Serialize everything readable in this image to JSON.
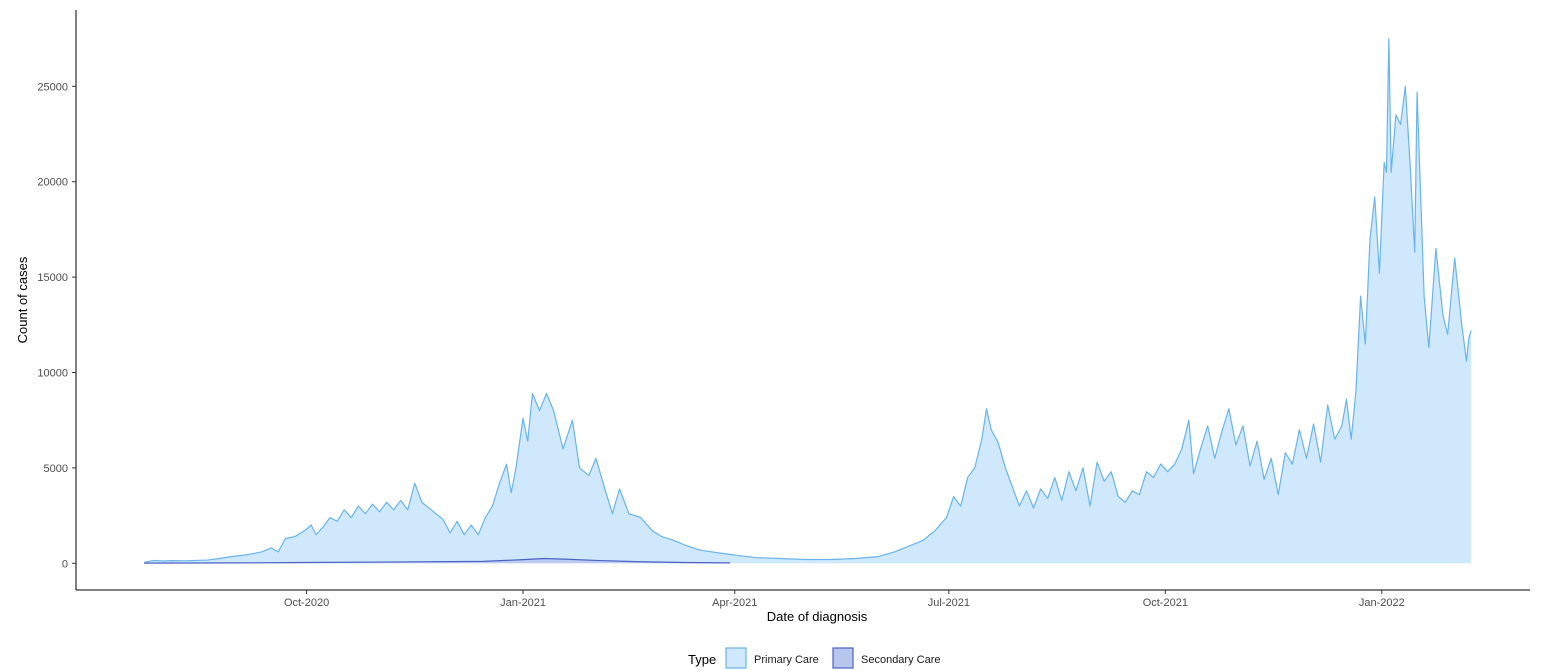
{
  "chart_data": {
    "type": "area",
    "xlabel": "Date of diagnosis",
    "ylabel": "Count of cases",
    "x_ticks": [
      "2020-10-01",
      "2021-01-01",
      "2021-04-01",
      "2021-07-01",
      "2021-10-01",
      "2022-01-01"
    ],
    "x_tick_labels": [
      "Oct-2020",
      "Jan-2021",
      "Apr-2021",
      "Jul-2021",
      "Oct-2021",
      "Jan-2022"
    ],
    "xlim": [
      "2020-06-25",
      "2022-03-05"
    ],
    "y_ticks": [
      0,
      5000,
      10000,
      15000,
      20000,
      25000
    ],
    "y_tick_labels": [
      "0",
      "5000",
      "10000",
      "15000",
      "20000",
      "25000"
    ],
    "ylim": [
      -1400,
      29000
    ],
    "grid": false,
    "legend": {
      "title": "Type",
      "position": "bottom",
      "items": [
        "Primary Care",
        "Secondary Care"
      ]
    },
    "colors": {
      "primary_fill": "#cfe8fb",
      "primary_line": "#6ab4ec",
      "secondary_fill": "#b8c6ee",
      "secondary_line": "#4a62c4"
    },
    "series": [
      {
        "name": "Primary Care",
        "points": [
          [
            "2020-07-24",
            50
          ],
          [
            "2020-07-28",
            150
          ],
          [
            "2020-08-01",
            120
          ],
          [
            "2020-08-05",
            140
          ],
          [
            "2020-08-10",
            130
          ],
          [
            "2020-08-15",
            150
          ],
          [
            "2020-08-20",
            170
          ],
          [
            "2020-08-25",
            250
          ],
          [
            "2020-08-30",
            350
          ],
          [
            "2020-09-04",
            420
          ],
          [
            "2020-09-08",
            500
          ],
          [
            "2020-09-12",
            600
          ],
          [
            "2020-09-16",
            800
          ],
          [
            "2020-09-19",
            600
          ],
          [
            "2020-09-22",
            1300
          ],
          [
            "2020-09-26",
            1400
          ],
          [
            "2020-09-30",
            1700
          ],
          [
            "2020-10-03",
            2000
          ],
          [
            "2020-10-05",
            1500
          ],
          [
            "2020-10-08",
            1900
          ],
          [
            "2020-10-11",
            2400
          ],
          [
            "2020-10-14",
            2200
          ],
          [
            "2020-10-17",
            2800
          ],
          [
            "2020-10-20",
            2400
          ],
          [
            "2020-10-23",
            3000
          ],
          [
            "2020-10-26",
            2600
          ],
          [
            "2020-10-29",
            3100
          ],
          [
            "2020-11-01",
            2700
          ],
          [
            "2020-11-04",
            3200
          ],
          [
            "2020-11-07",
            2800
          ],
          [
            "2020-11-10",
            3300
          ],
          [
            "2020-11-13",
            2800
          ],
          [
            "2020-11-16",
            4200
          ],
          [
            "2020-11-19",
            3200
          ],
          [
            "2020-11-22",
            2900
          ],
          [
            "2020-11-25",
            2600
          ],
          [
            "2020-11-28",
            2300
          ],
          [
            "2020-12-01",
            1600
          ],
          [
            "2020-12-04",
            2200
          ],
          [
            "2020-12-07",
            1500
          ],
          [
            "2020-12-10",
            2000
          ],
          [
            "2020-12-13",
            1500
          ],
          [
            "2020-12-16",
            2400
          ],
          [
            "2020-12-19",
            3000
          ],
          [
            "2020-12-22",
            4200
          ],
          [
            "2020-12-25",
            5200
          ],
          [
            "2020-12-27",
            3700
          ],
          [
            "2020-12-29",
            5000
          ],
          [
            "2021-01-01",
            7600
          ],
          [
            "2021-01-03",
            6400
          ],
          [
            "2021-01-05",
            8900
          ],
          [
            "2021-01-08",
            8000
          ],
          [
            "2021-01-11",
            8900
          ],
          [
            "2021-01-14",
            8000
          ],
          [
            "2021-01-18",
            6000
          ],
          [
            "2021-01-22",
            7500
          ],
          [
            "2021-01-25",
            5000
          ],
          [
            "2021-01-29",
            4600
          ],
          [
            "2021-02-01",
            5500
          ],
          [
            "2021-02-05",
            3800
          ],
          [
            "2021-02-08",
            2600
          ],
          [
            "2021-02-11",
            3900
          ],
          [
            "2021-02-15",
            2600
          ],
          [
            "2021-02-20",
            2400
          ],
          [
            "2021-02-25",
            1700
          ],
          [
            "2021-03-01",
            1400
          ],
          [
            "2021-03-06",
            1200
          ],
          [
            "2021-03-12",
            900
          ],
          [
            "2021-03-17",
            700
          ],
          [
            "2021-03-22",
            600
          ],
          [
            "2021-03-28",
            500
          ],
          [
            "2021-04-03",
            400
          ],
          [
            "2021-04-10",
            300
          ],
          [
            "2021-04-20",
            250
          ],
          [
            "2021-05-01",
            200
          ],
          [
            "2021-05-12",
            200
          ],
          [
            "2021-05-22",
            250
          ],
          [
            "2021-06-01",
            350
          ],
          [
            "2021-06-08",
            600
          ],
          [
            "2021-06-14",
            900
          ],
          [
            "2021-06-20",
            1200
          ],
          [
            "2021-06-25",
            1700
          ],
          [
            "2021-06-30",
            2400
          ],
          [
            "2021-07-03",
            3500
          ],
          [
            "2021-07-06",
            3000
          ],
          [
            "2021-07-09",
            4500
          ],
          [
            "2021-07-12",
            5000
          ],
          [
            "2021-07-15",
            6500
          ],
          [
            "2021-07-17",
            8100
          ],
          [
            "2021-07-19",
            7000
          ],
          [
            "2021-07-22",
            6300
          ],
          [
            "2021-07-25",
            5000
          ],
          [
            "2021-07-28",
            4000
          ],
          [
            "2021-07-31",
            3000
          ],
          [
            "2021-08-03",
            3800
          ],
          [
            "2021-08-06",
            2900
          ],
          [
            "2021-08-09",
            3900
          ],
          [
            "2021-08-12",
            3400
          ],
          [
            "2021-08-15",
            4500
          ],
          [
            "2021-08-18",
            3300
          ],
          [
            "2021-08-21",
            4800
          ],
          [
            "2021-08-24",
            3800
          ],
          [
            "2021-08-27",
            5000
          ],
          [
            "2021-08-30",
            3000
          ],
          [
            "2021-09-02",
            5300
          ],
          [
            "2021-09-05",
            4300
          ],
          [
            "2021-09-08",
            4800
          ],
          [
            "2021-09-11",
            3500
          ],
          [
            "2021-09-14",
            3200
          ],
          [
            "2021-09-17",
            3800
          ],
          [
            "2021-09-20",
            3600
          ],
          [
            "2021-09-23",
            4800
          ],
          [
            "2021-09-26",
            4500
          ],
          [
            "2021-09-29",
            5200
          ],
          [
            "2021-10-02",
            4800
          ],
          [
            "2021-10-05",
            5200
          ],
          [
            "2021-10-08",
            6000
          ],
          [
            "2021-10-11",
            7500
          ],
          [
            "2021-10-13",
            4700
          ],
          [
            "2021-10-16",
            6000
          ],
          [
            "2021-10-19",
            7200
          ],
          [
            "2021-10-22",
            5500
          ],
          [
            "2021-10-25",
            6900
          ],
          [
            "2021-10-28",
            8100
          ],
          [
            "2021-10-31",
            6200
          ],
          [
            "2021-11-03",
            7200
          ],
          [
            "2021-11-06",
            5100
          ],
          [
            "2021-11-09",
            6400
          ],
          [
            "2021-11-12",
            4400
          ],
          [
            "2021-11-15",
            5500
          ],
          [
            "2021-11-18",
            3600
          ],
          [
            "2021-11-21",
            5800
          ],
          [
            "2021-11-24",
            5200
          ],
          [
            "2021-11-27",
            7000
          ],
          [
            "2021-11-30",
            5500
          ],
          [
            "2021-12-03",
            7300
          ],
          [
            "2021-12-06",
            5300
          ],
          [
            "2021-12-09",
            8300
          ],
          [
            "2021-12-12",
            6500
          ],
          [
            "2021-12-15",
            7200
          ],
          [
            "2021-12-17",
            8600
          ],
          [
            "2021-12-19",
            6500
          ],
          [
            "2021-12-21",
            9000
          ],
          [
            "2021-12-23",
            14000
          ],
          [
            "2021-12-25",
            11500
          ],
          [
            "2021-12-27",
            17000
          ],
          [
            "2021-12-29",
            19200
          ],
          [
            "2021-12-31",
            15200
          ],
          [
            "2022-01-02",
            21000
          ],
          [
            "2022-01-03",
            20500
          ],
          [
            "2022-01-04",
            27500
          ],
          [
            "2022-01-05",
            20500
          ],
          [
            "2022-01-07",
            23500
          ],
          [
            "2022-01-09",
            23000
          ],
          [
            "2022-01-11",
            25000
          ],
          [
            "2022-01-13",
            21000
          ],
          [
            "2022-01-15",
            16300
          ],
          [
            "2022-01-16",
            24700
          ],
          [
            "2022-01-19",
            14000
          ],
          [
            "2022-01-21",
            11300
          ],
          [
            "2022-01-24",
            16500
          ],
          [
            "2022-01-27",
            13000
          ],
          [
            "2022-01-29",
            12000
          ],
          [
            "2022-02-01",
            16000
          ],
          [
            "2022-02-04",
            12500
          ],
          [
            "2022-02-06",
            10600
          ],
          [
            "2022-02-07",
            11800
          ],
          [
            "2022-02-08",
            12200
          ]
        ]
      },
      {
        "name": "Secondary Care",
        "points": [
          [
            "2020-07-24",
            10
          ],
          [
            "2020-09-01",
            20
          ],
          [
            "2020-10-01",
            40
          ],
          [
            "2020-11-10",
            70
          ],
          [
            "2020-12-15",
            100
          ],
          [
            "2021-01-01",
            190
          ],
          [
            "2021-01-10",
            250
          ],
          [
            "2021-01-20",
            210
          ],
          [
            "2021-02-01",
            150
          ],
          [
            "2021-02-20",
            80
          ],
          [
            "2021-03-10",
            40
          ],
          [
            "2021-03-30",
            20
          ]
        ]
      }
    ]
  }
}
